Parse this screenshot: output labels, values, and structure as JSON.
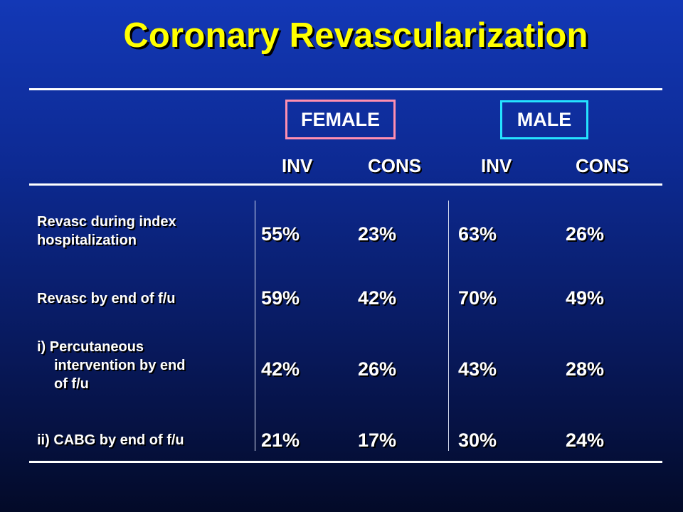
{
  "slide": {
    "title": "Coronary Revascularization"
  },
  "groups": {
    "female_label": "FEMALE",
    "male_label": "MALE",
    "female_border_color": "#ff8fb0",
    "male_border_color": "#25e3ff"
  },
  "columns": {
    "female_inv": "INV",
    "female_cons": "CONS",
    "male_inv": "INV",
    "male_cons": "CONS"
  },
  "rows": [
    {
      "label_lines": [
        "Revasc during index",
        "hospitalization"
      ],
      "female_inv": "55%",
      "female_cons": "23%",
      "male_inv": "63%",
      "male_cons": "26%"
    },
    {
      "label_lines": [
        "Revasc by end of f/u"
      ],
      "female_inv": "59%",
      "female_cons": "42%",
      "male_inv": "70%",
      "male_cons": "49%"
    },
    {
      "label_lines": [
        "i) Percutaneous",
        "intervention by end",
        "of f/u"
      ],
      "female_inv": "42%",
      "female_cons": "26%",
      "male_inv": "43%",
      "male_cons": "28%"
    },
    {
      "label_lines": [
        "ii) CABG by end of f/u"
      ],
      "female_inv": "21%",
      "female_cons": "17%",
      "male_inv": "30%",
      "male_cons": "24%"
    }
  ],
  "style": {
    "title_color": "#ffff00",
    "text_color": "#ffffff",
    "background_top": "#1338b6",
    "background_bottom": "#030a28"
  }
}
